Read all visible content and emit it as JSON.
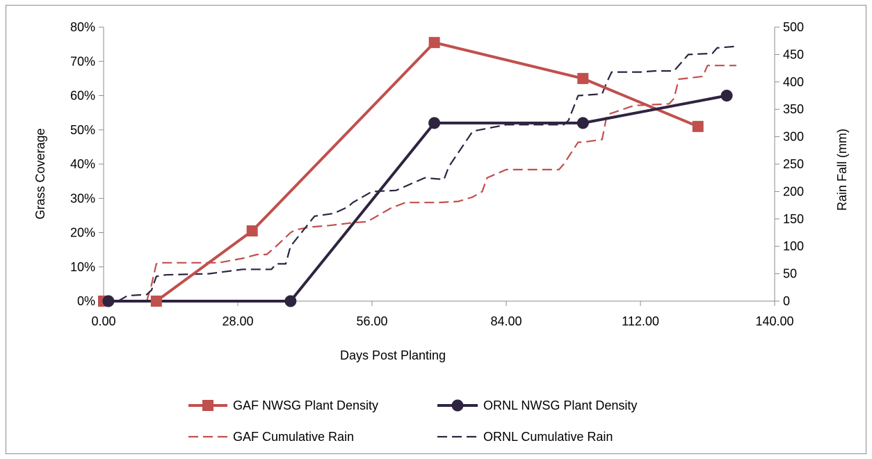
{
  "chart_data": {
    "type": "line",
    "title": "",
    "xlabel": "Days Post Planting",
    "ylabel_left": "Grass Coverage",
    "ylabel_right": "Rain Fall (mm)",
    "xlim": [
      0,
      140
    ],
    "x_ticks": [
      "0.00",
      "28.00",
      "56.00",
      "84.00",
      "112.00",
      "140.00"
    ],
    "x_tick_values": [
      0,
      28,
      56,
      84,
      112,
      140
    ],
    "ylim_left": [
      0,
      0.8
    ],
    "y_left_ticks": [
      "0%",
      "10%",
      "20%",
      "30%",
      "40%",
      "50%",
      "60%",
      "70%",
      "80%"
    ],
    "y_left_tick_values": [
      0,
      0.1,
      0.2,
      0.3,
      0.4,
      0.5,
      0.6,
      0.7,
      0.8
    ],
    "ylim_right": [
      0,
      500
    ],
    "y_right_ticks": [
      "0",
      "50",
      "100",
      "150",
      "200",
      "250",
      "300",
      "350",
      "400",
      "450",
      "500"
    ],
    "y_right_tick_values": [
      0,
      50,
      100,
      150,
      200,
      250,
      300,
      350,
      400,
      450,
      500
    ],
    "grid": false,
    "legend_position": "bottom",
    "series": [
      {
        "name": "GAF NWSG Plant Density",
        "axis": "left",
        "style": "solid-square",
        "color": "#c0504d",
        "x": [
          0,
          11,
          31,
          69,
          100,
          124
        ],
        "y": [
          0,
          0,
          0.205,
          0.755,
          0.65,
          0.51
        ]
      },
      {
        "name": "ORNL NWSG Plant Density",
        "axis": "left",
        "style": "solid-circle",
        "color": "#2e2440",
        "x": [
          1,
          39,
          69,
          100,
          130
        ],
        "y": [
          0,
          0,
          0.52,
          0.52,
          0.6
        ]
      },
      {
        "name": "GAF Cumulative Rain",
        "axis": "right",
        "style": "dashed",
        "color": "#c0504d",
        "x": [
          0,
          9,
          10,
          11,
          12,
          17,
          24,
          29,
          32,
          34,
          36,
          39,
          40,
          43,
          47,
          52,
          55,
          56,
          60,
          63,
          70,
          74,
          77,
          79,
          80,
          84,
          95,
          96,
          99,
          100,
          104,
          105,
          110,
          111,
          118,
          119,
          120,
          125,
          126,
          132
        ],
        "y": [
          0,
          0,
          30,
          68,
          70,
          70,
          70,
          78,
          85,
          85,
          100,
          125,
          130,
          135,
          138,
          143,
          145,
          150,
          170,
          180,
          180,
          182,
          190,
          200,
          225,
          240,
          240,
          250,
          290,
          290,
          295,
          340,
          355,
          357,
          360,
          370,
          405,
          410,
          430,
          430
        ]
      },
      {
        "name": "ORNL Cumulative Rain",
        "axis": "right",
        "style": "dashed",
        "color": "#2e2440",
        "x": [
          0,
          3,
          5,
          9,
          10,
          11,
          13,
          22,
          29,
          35,
          36,
          38,
          39,
          44,
          48,
          51,
          52,
          56,
          61,
          67,
          71,
          72,
          77,
          84,
          88,
          96,
          97,
          99,
          104,
          105,
          106,
          112,
          115,
          119,
          121,
          122,
          127,
          128,
          132
        ],
        "y": [
          0,
          0,
          10,
          12,
          20,
          45,
          48,
          50,
          58,
          58,
          68,
          68,
          100,
          155,
          160,
          172,
          180,
          200,
          202,
          225,
          222,
          245,
          310,
          322,
          322,
          322,
          330,
          375,
          378,
          400,
          418,
          418,
          420,
          420,
          440,
          450,
          452,
          462,
          465
        ]
      }
    ]
  }
}
